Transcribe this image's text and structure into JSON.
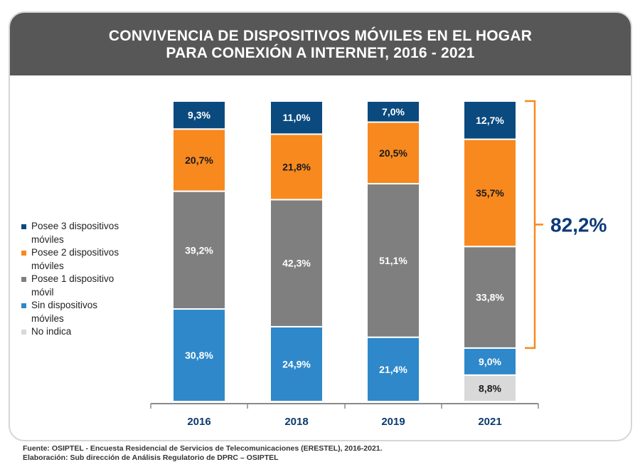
{
  "title_lines": [
    "CONVIVENCIA DE DISPOSITIVOS MÓVILES EN EL HOGAR",
    "PARA CONEXIÓN A INTERNET, 2016 - 2021"
  ],
  "legend": [
    {
      "label": "Posee 3 dispositivos\nmóviles",
      "color": "#0b4a7e"
    },
    {
      "label": "Posee 2 dispositivos\nmóviles",
      "color": "#f7891f"
    },
    {
      "label": "Posee 1 dispositivo\nmóvil",
      "color": "#7f7f7f"
    },
    {
      "label": "Sin dispositivos\nmóviles",
      "color": "#2e88c9"
    },
    {
      "label": "No indica",
      "color": "#d9d9d9"
    }
  ],
  "chart_data": {
    "type": "bar",
    "stacked": true,
    "categories": [
      "2016",
      "2018",
      "2019",
      "2021"
    ],
    "series": [
      {
        "name": "No indica",
        "values": [
          0,
          0,
          0,
          8.8
        ],
        "labels": [
          "",
          "",
          "",
          "8,8%"
        ],
        "color": "#d9d9d9",
        "label_color": "#1a1a1a"
      },
      {
        "name": "Sin dispositivos móviles",
        "values": [
          30.8,
          24.9,
          21.4,
          9.0
        ],
        "labels": [
          "30,8%",
          "24,9%",
          "21,4%",
          "9,0%"
        ],
        "color": "#2e88c9",
        "label_color": "#ffffff"
      },
      {
        "name": "Posee 1 dispositivo móvil",
        "values": [
          39.2,
          42.3,
          51.1,
          33.8
        ],
        "labels": [
          "39,2%",
          "42,3%",
          "51,1%",
          "33,8%"
        ],
        "color": "#7f7f7f",
        "label_color": "#ffffff"
      },
      {
        "name": "Posee 2 dispositivos móviles",
        "values": [
          20.7,
          21.8,
          20.5,
          35.7
        ],
        "labels": [
          "20,7%",
          "21,8%",
          "20,5%",
          "35,7%"
        ],
        "color": "#f7891f",
        "label_color": "#1a1a1a"
      },
      {
        "name": "Posee 3 dispositivos móviles",
        "values": [
          9.3,
          11.0,
          7.0,
          12.7
        ],
        "labels": [
          "9,3%",
          "11,0%",
          "7,0%",
          "12,7%"
        ],
        "color": "#0b4a7e",
        "label_color": "#ffffff"
      }
    ],
    "ylim": [
      0,
      100
    ],
    "annotation": {
      "text": "82,2%",
      "category": "2021",
      "from_series": 2,
      "to_series": 4,
      "color": "#f7891f",
      "text_color": "#0b3a7a"
    }
  },
  "source_lines": [
    "Fuente: OSIPTEL - Encuesta Residencial de Servicios de Telecomunicaciones (ERESTEL), 2016-2021.",
    "Elaboración: Sub dirección de Análisis Regulatorio de DPRC – OSIPTEL"
  ]
}
